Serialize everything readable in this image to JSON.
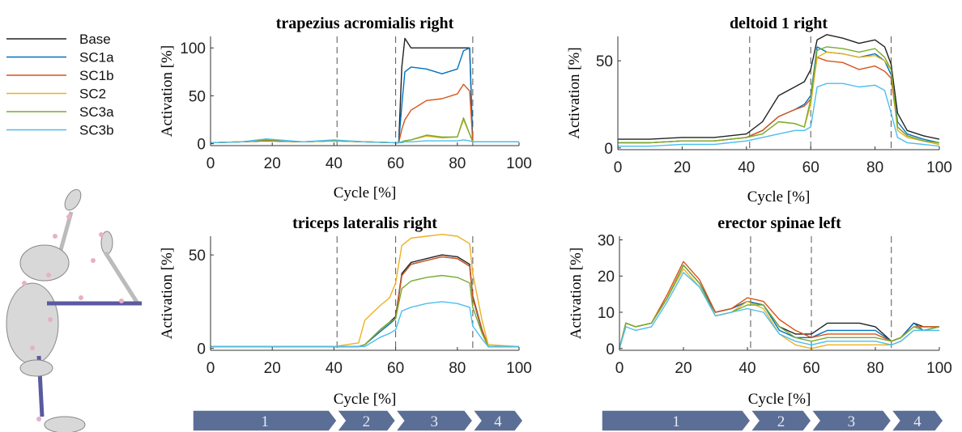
{
  "chart_data": [
    {
      "type": "line",
      "title": "trapezius acromialis right",
      "xlabel": "Cycle [%]",
      "ylabel": "Activation [%]",
      "xlim": [
        0,
        100
      ],
      "ylim": [
        -2,
        112
      ],
      "xticks": [
        0,
        20,
        40,
        60,
        80,
        100
      ],
      "yticks": [
        0,
        50,
        100
      ],
      "phase_lines": [
        41,
        60,
        85
      ],
      "x": [
        0,
        10,
        18,
        30,
        40,
        50,
        60,
        61,
        62,
        63,
        65,
        70,
        75,
        80,
        82,
        84,
        85,
        90,
        100
      ],
      "series": [
        {
          "name": "Base",
          "color": "#222222",
          "values": [
            1,
            2,
            3,
            2,
            3,
            2,
            1,
            1,
            80,
            110,
            100,
            100,
            100,
            100,
            100,
            100,
            2,
            2,
            2
          ]
        },
        {
          "name": "SC1a",
          "color": "#0072bd",
          "values": [
            1,
            2,
            3,
            2,
            3,
            2,
            1,
            1,
            40,
            75,
            80,
            78,
            73,
            78,
            97,
            100,
            2,
            2,
            2
          ]
        },
        {
          "name": "SC1b",
          "color": "#d95319",
          "values": [
            1,
            2,
            3,
            2,
            3,
            2,
            1,
            1,
            15,
            25,
            35,
            45,
            47,
            52,
            62,
            55,
            2,
            2,
            2
          ]
        },
        {
          "name": "SC2",
          "color": "#edb120",
          "values": [
            1,
            2,
            4,
            2,
            3,
            2,
            1,
            1,
            2,
            3,
            4,
            8,
            6,
            7,
            25,
            10,
            2,
            2,
            2
          ]
        },
        {
          "name": "SC3a",
          "color": "#77ac30",
          "values": [
            1,
            2,
            4,
            2,
            3,
            2,
            1,
            1,
            2,
            3,
            4,
            9,
            7,
            7,
            27,
            10,
            2,
            2,
            2
          ]
        },
        {
          "name": "SC3b",
          "color": "#4dbeee",
          "values": [
            1,
            2,
            5,
            2,
            4,
            2,
            1,
            1,
            1,
            2,
            2,
            3,
            3,
            3,
            4,
            3,
            2,
            2,
            2
          ]
        }
      ]
    },
    {
      "type": "line",
      "title": "deltoid 1 right",
      "xlabel": "Cycle [%]",
      "ylabel": "Activation [%]",
      "xlim": [
        0,
        100
      ],
      "ylim": [
        -1,
        64
      ],
      "xticks": [
        0,
        20,
        40,
        60,
        80,
        100
      ],
      "yticks": [
        0,
        50
      ],
      "phase_lines": [
        41,
        60,
        85
      ],
      "x": [
        0,
        5,
        10,
        20,
        30,
        40,
        45,
        50,
        55,
        58,
        60,
        62,
        65,
        70,
        75,
        80,
        83,
        85,
        87,
        90,
        95,
        100
      ],
      "series": [
        {
          "name": "Base",
          "color": "#222222",
          "values": [
            5,
            5,
            5,
            6,
            6,
            8,
            15,
            30,
            35,
            38,
            45,
            62,
            65,
            63,
            60,
            62,
            58,
            48,
            20,
            10,
            7,
            5
          ]
        },
        {
          "name": "SC1a",
          "color": "#0072bd",
          "values": [
            3,
            3,
            3,
            4,
            4,
            6,
            10,
            18,
            22,
            25,
            30,
            58,
            55,
            54,
            52,
            54,
            50,
            42,
            15,
            8,
            5,
            3
          ]
        },
        {
          "name": "SC1b",
          "color": "#d95319",
          "values": [
            3,
            3,
            3,
            4,
            4,
            6,
            10,
            18,
            22,
            24,
            28,
            52,
            50,
            49,
            45,
            47,
            44,
            40,
            12,
            7,
            4,
            2
          ]
        },
        {
          "name": "SC2",
          "color": "#edb120",
          "values": [
            3,
            3,
            3,
            4,
            4,
            6,
            8,
            15,
            14,
            12,
            25,
            52,
            55,
            54,
            52,
            53,
            50,
            45,
            10,
            6,
            4,
            2
          ]
        },
        {
          "name": "SC3a",
          "color": "#77ac30",
          "values": [
            3,
            3,
            3,
            4,
            4,
            6,
            8,
            15,
            14,
            12,
            28,
            56,
            58,
            57,
            55,
            57,
            52,
            45,
            12,
            7,
            4,
            3
          ]
        },
        {
          "name": "SC3b",
          "color": "#4dbeee",
          "values": [
            1,
            1,
            1,
            2,
            2,
            4,
            6,
            8,
            10,
            10,
            12,
            35,
            37,
            37,
            35,
            36,
            33,
            20,
            6,
            3,
            2,
            1
          ]
        }
      ]
    },
    {
      "type": "line",
      "title": "triceps lateralis right",
      "xlabel": "Cycle [%]",
      "ylabel": "Activation [%]",
      "xlim": [
        0,
        100
      ],
      "ylim": [
        -1,
        60
      ],
      "xticks": [
        0,
        20,
        40,
        60,
        80,
        100
      ],
      "yticks": [
        0,
        50
      ],
      "phase_lines": [
        41,
        60,
        85
      ],
      "phases": [
        "1",
        "2",
        "3",
        "4"
      ],
      "x": [
        0,
        10,
        20,
        30,
        40,
        48,
        50,
        55,
        58,
        60,
        62,
        65,
        70,
        75,
        80,
        84,
        85,
        88,
        90,
        100
      ],
      "series": [
        {
          "name": "Base",
          "color": "#222222",
          "values": [
            1,
            1,
            1,
            1,
            1,
            1,
            2,
            10,
            14,
            17,
            40,
            46,
            48,
            50,
            49,
            45,
            28,
            10,
            1,
            1
          ]
        },
        {
          "name": "SC1a",
          "color": "#0072bd",
          "values": [
            1,
            1,
            1,
            1,
            1,
            1,
            2,
            9,
            13,
            16,
            39,
            45,
            47,
            49,
            48,
            44,
            27,
            9,
            1,
            1
          ]
        },
        {
          "name": "SC1b",
          "color": "#d95319",
          "values": [
            1,
            1,
            1,
            1,
            1,
            1,
            2,
            10,
            14,
            16,
            39,
            45,
            47,
            49,
            48,
            44,
            27,
            10,
            1,
            1
          ]
        },
        {
          "name": "SC2",
          "color": "#edb120",
          "values": [
            1,
            1,
            1,
            1,
            1,
            3,
            15,
            23,
            27,
            35,
            55,
            59,
            60,
            61,
            60,
            56,
            40,
            15,
            2,
            1
          ]
        },
        {
          "name": "SC3a",
          "color": "#77ac30",
          "values": [
            1,
            1,
            1,
            1,
            1,
            1,
            2,
            10,
            14,
            16,
            32,
            36,
            38,
            39,
            38,
            35,
            22,
            8,
            1,
            1
          ]
        },
        {
          "name": "SC3b",
          "color": "#4dbeee",
          "values": [
            1,
            1,
            1,
            1,
            1,
            1,
            1,
            6,
            8,
            10,
            20,
            22,
            24,
            25,
            24,
            22,
            12,
            5,
            1,
            1
          ]
        }
      ]
    },
    {
      "type": "line",
      "title": "erector spinae left",
      "xlabel": "Cycle [%]",
      "ylabel": "Activation [%]",
      "xlim": [
        0,
        100
      ],
      "ylim": [
        -0.5,
        31
      ],
      "xticks": [
        0,
        20,
        40,
        60,
        80,
        100
      ],
      "yticks": [
        0,
        10,
        20,
        30
      ],
      "phase_lines": [
        41,
        60,
        85
      ],
      "phases": [
        "1",
        "2",
        "3",
        "4"
      ],
      "x": [
        0,
        2,
        5,
        10,
        15,
        20,
        25,
        30,
        35,
        40,
        45,
        50,
        55,
        60,
        65,
        70,
        75,
        80,
        85,
        88,
        92,
        95,
        100
      ],
      "series": [
        {
          "name": "Base",
          "color": "#222222",
          "values": [
            0,
            7,
            6,
            7,
            14,
            23,
            18,
            10,
            11,
            13,
            12,
            6,
            4,
            4,
            7,
            7,
            7,
            6,
            2,
            3,
            7,
            6,
            6
          ]
        },
        {
          "name": "SC1a",
          "color": "#0072bd",
          "values": [
            0,
            7,
            6,
            7,
            14,
            23,
            18,
            10,
            11,
            13,
            12,
            5,
            3,
            3,
            5,
            5,
            5,
            5,
            2,
            3,
            7,
            5,
            6
          ]
        },
        {
          "name": "SC1b",
          "color": "#d95319",
          "values": [
            0,
            7,
            6,
            7,
            15,
            24,
            19,
            10,
            11,
            14,
            13,
            8,
            5,
            3,
            4,
            4,
            4,
            4,
            2,
            3,
            6,
            6,
            6
          ]
        },
        {
          "name": "SC2",
          "color": "#edb120",
          "values": [
            0,
            7,
            6,
            7,
            14,
            22,
            17,
            9,
            10,
            13,
            11,
            4,
            1,
            0,
            1,
            1,
            1,
            1,
            1,
            2,
            5,
            5,
            5
          ]
        },
        {
          "name": "SC3a",
          "color": "#77ac30",
          "values": [
            0,
            7,
            6,
            7,
            14,
            23,
            18,
            9,
            10,
            12,
            12,
            6,
            3,
            2,
            3,
            3,
            3,
            3,
            2,
            3,
            6,
            5,
            6
          ]
        },
        {
          "name": "SC3b",
          "color": "#4dbeee",
          "values": [
            0,
            6,
            5,
            6,
            13,
            21,
            17,
            9,
            10,
            11,
            10,
            4,
            2,
            1,
            2,
            2,
            2,
            2,
            1,
            2,
            5,
            5,
            5
          ]
        }
      ]
    }
  ]
}
